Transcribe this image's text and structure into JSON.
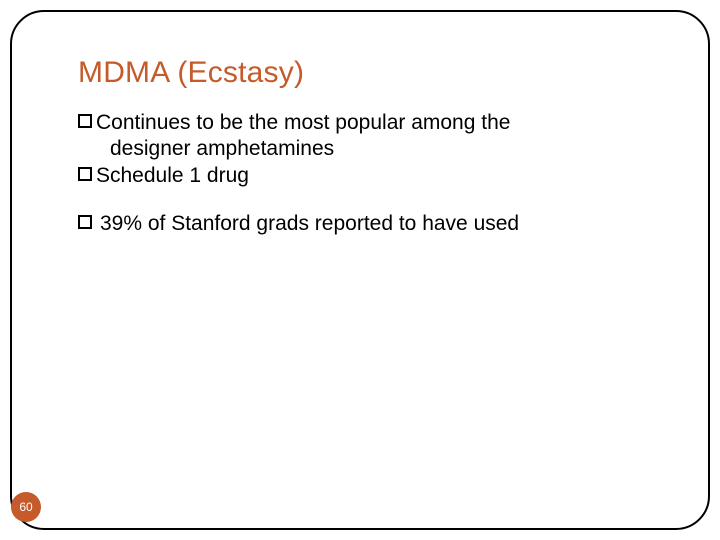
{
  "slide": {
    "title": "MDMA (Ecstasy)",
    "title_color": "#c55a2a",
    "bullets": [
      {
        "line1": "Continues to be the most popular among the",
        "line2": "designer amphetamines"
      },
      {
        "line1": "Schedule 1 drug"
      },
      {
        "line1": "39% of Stanford grads reported to have used",
        "spaced": true
      }
    ],
    "page_number": "60",
    "badge_color": "#c55a2a",
    "frame_border_color": "#000000",
    "text_color": "#000000",
    "background": "#ffffff"
  }
}
